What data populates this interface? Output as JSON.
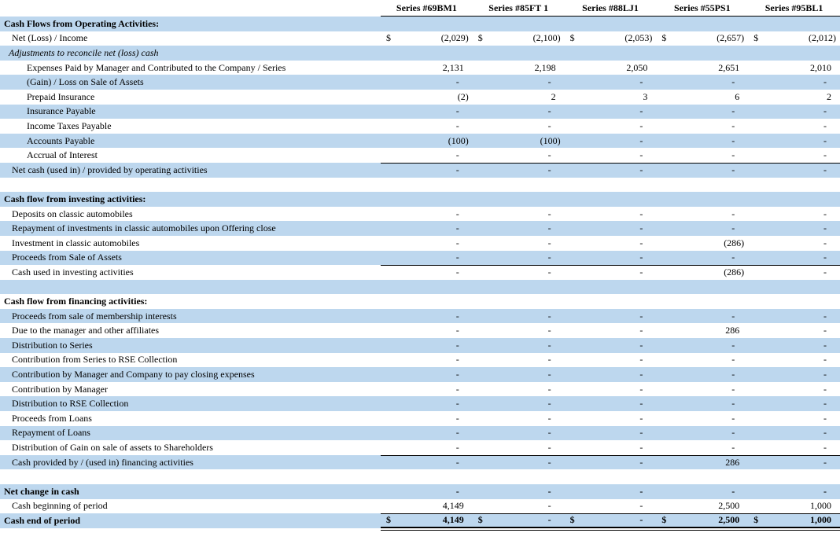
{
  "report": {
    "columns": [
      "Series #69BM1",
      "Series #85FT 1",
      "Series #88LJ1",
      "Series #55PS1",
      "Series #95BL1"
    ],
    "colors": {
      "band_blue": "#BDD7EE",
      "rule": "#000000",
      "text": "#000000"
    },
    "currency_symbol": "$",
    "rows": [
      {
        "label": "Cash Flows from Operating Activities:",
        "type": "section"
      },
      {
        "label": "Net (Loss) / Income",
        "indent": 1,
        "dollar": true,
        "values": [
          "(2,029)",
          "(2,100)",
          "(2,053)",
          "(2,657)",
          "(2,012)"
        ]
      },
      {
        "label": "Adjustments to reconcile net (loss) cash",
        "type": "italic",
        "indent": "adj"
      },
      {
        "label": "Expenses Paid by Manager and Contributed to the Company / Series",
        "indent": 2,
        "values": [
          "2,131",
          "2,198",
          "2,050",
          "2,651",
          "2,010"
        ]
      },
      {
        "label": "(Gain) / Loss on Sale of Assets",
        "indent": 2,
        "values": [
          "-",
          "-",
          "-",
          "-",
          "-"
        ]
      },
      {
        "label": "Prepaid Insurance",
        "indent": 2,
        "values": [
          "(2)",
          "2",
          "3",
          "6",
          "2"
        ]
      },
      {
        "label": "Insurance Payable",
        "indent": 2,
        "values": [
          "-",
          "-",
          "-",
          "-",
          "-"
        ]
      },
      {
        "label": "Income Taxes Payable",
        "indent": 2,
        "values": [
          "-",
          "-",
          "-",
          "-",
          "-"
        ]
      },
      {
        "label": "Accounts Payable",
        "indent": 2,
        "values": [
          "(100)",
          "(100)",
          "-",
          "-",
          "-"
        ]
      },
      {
        "label": "Accrual of Interest",
        "indent": 2,
        "values": [
          "-",
          "-",
          "-",
          "-",
          "-"
        ]
      },
      {
        "label": "Net cash (used in) / provided by operating activities",
        "indent": 1,
        "rule_top": true,
        "values": [
          "-",
          "-",
          "-",
          "-",
          "-"
        ]
      },
      {
        "label": "",
        "type": "spacer"
      },
      {
        "label": "Cash flow from investing activities:",
        "type": "section"
      },
      {
        "label": "Deposits on classic automobiles",
        "indent": 1,
        "values": [
          "-",
          "-",
          "-",
          "-",
          "-"
        ]
      },
      {
        "label": "Repayment of investments in classic automobiles upon Offering close",
        "indent": 1,
        "values": [
          "-",
          "-",
          "-",
          "-",
          "-"
        ]
      },
      {
        "label": "Investment in classic automobiles",
        "indent": 1,
        "values": [
          "-",
          "-",
          "-",
          "(286)",
          "-"
        ]
      },
      {
        "label": "Proceeds from Sale of Assets",
        "indent": 1,
        "values": [
          "-",
          "-",
          "-",
          "-",
          "-"
        ]
      },
      {
        "label": "Cash used in investing activities",
        "indent": 1,
        "rule_top": true,
        "values": [
          "-",
          "-",
          "-",
          "(286)",
          "-"
        ]
      },
      {
        "label": "",
        "type": "spacer"
      },
      {
        "label": "Cash flow from financing activities:",
        "type": "section"
      },
      {
        "label": "Proceeds from sale of membership interests",
        "indent": 1,
        "values": [
          "-",
          "-",
          "-",
          "-",
          "-"
        ]
      },
      {
        "label": "Due to the manager and other affiliates",
        "indent": 1,
        "values": [
          "-",
          "-",
          "-",
          "286",
          "-"
        ]
      },
      {
        "label": "Distribution to Series",
        "indent": 1,
        "values": [
          "-",
          "-",
          "-",
          "-",
          "-"
        ]
      },
      {
        "label": "Contribution from Series to RSE Collection",
        "indent": 1,
        "values": [
          "-",
          "-",
          "-",
          "-",
          "-"
        ]
      },
      {
        "label": "Contribution by Manager and Company to pay closing expenses",
        "indent": 1,
        "values": [
          "-",
          "-",
          "-",
          "-",
          "-"
        ]
      },
      {
        "label": "Contribution by Manager",
        "indent": 1,
        "values": [
          "-",
          "-",
          "-",
          "-",
          "-"
        ]
      },
      {
        "label": "Distribution to RSE Collection",
        "indent": 1,
        "values": [
          "-",
          "-",
          "-",
          "-",
          "-"
        ]
      },
      {
        "label": "Proceeds from Loans",
        "indent": 1,
        "values": [
          "-",
          "-",
          "-",
          "-",
          "-"
        ]
      },
      {
        "label": "Repayment of Loans",
        "indent": 1,
        "values": [
          "-",
          "-",
          "-",
          "-",
          "-"
        ]
      },
      {
        "label": "Distribution of Gain on sale of assets to Shareholders",
        "indent": 1,
        "values": [
          "-",
          "-",
          "-",
          "-",
          "-"
        ]
      },
      {
        "label": "Cash provided by / (used in) financing activities",
        "indent": 1,
        "rule_top": true,
        "values": [
          "-",
          "-",
          "-",
          "286",
          "-"
        ]
      },
      {
        "label": "",
        "type": "spacer"
      },
      {
        "label": "Net change in cash",
        "type": "section",
        "values": [
          "-",
          "-",
          "-",
          "-",
          "-"
        ]
      },
      {
        "label": "Cash beginning of period",
        "indent": 1,
        "values": [
          "4,149",
          "-",
          "-",
          "2,500",
          "1,000"
        ]
      },
      {
        "label": "Cash end of period",
        "type": "section",
        "dollar": true,
        "rule_top": true,
        "rule_double_bottom": true,
        "values": [
          "4,149",
          "-",
          "-",
          "2,500",
          "1,000"
        ]
      }
    ]
  }
}
